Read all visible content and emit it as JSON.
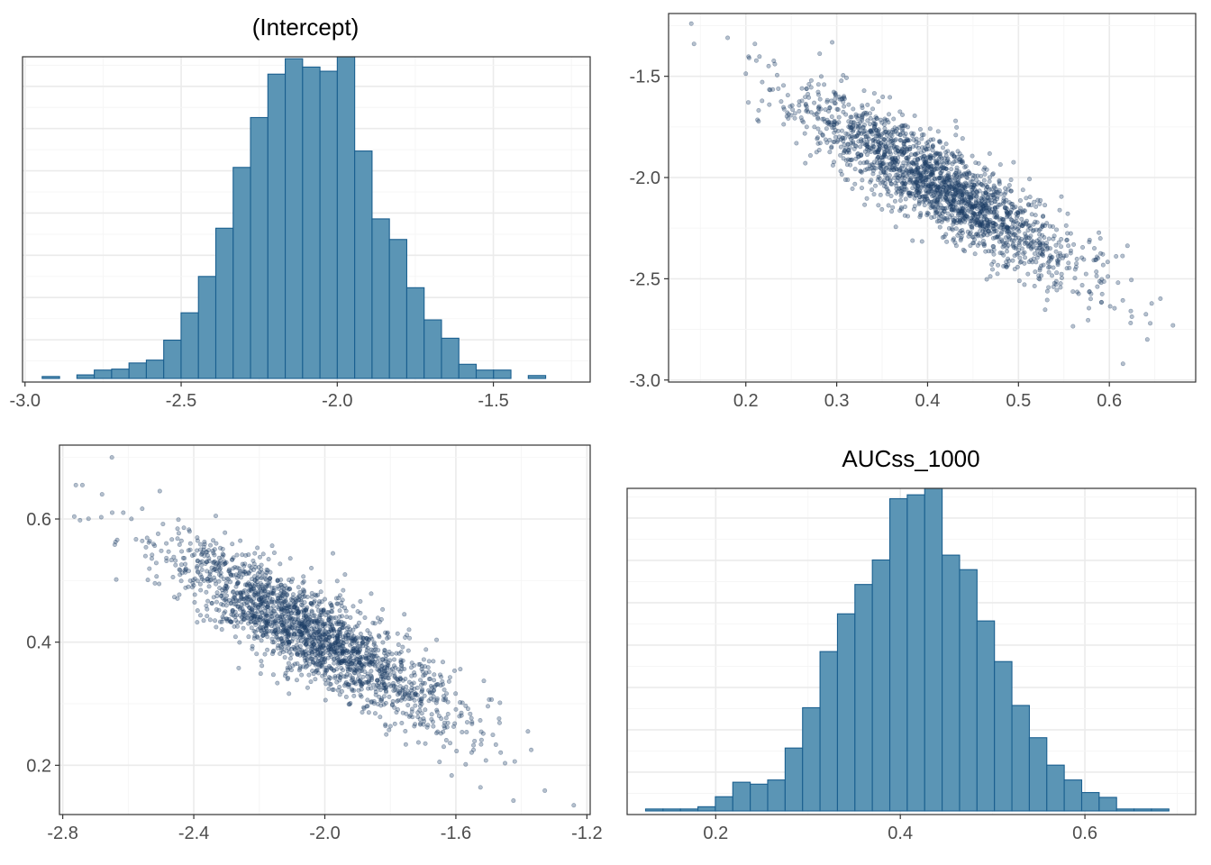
{
  "colors": {
    "hist_fill": "#5b95b5",
    "hist_stroke": "#1a5f8f",
    "point": "#1f3f66",
    "panel_border": "#333333",
    "grid": "#ebebeb"
  },
  "chart_data": [
    {
      "id": "hist-intercept",
      "type": "bar",
      "title": "(Intercept)",
      "xlabel": "",
      "ylabel": "",
      "xlim": [
        -3.008,
        -1.19
      ],
      "ylim": [
        0,
        1
      ],
      "x_ticks": [
        -3.0,
        -2.5,
        -2.0,
        -1.5
      ],
      "x_tick_labels": [
        "-3.0",
        "-2.5",
        "-2.0",
        "-1.5"
      ],
      "y_tick_labels_shown": false,
      "grid": true,
      "bin_start": -2.945,
      "bin_width": 0.0556,
      "values": [
        0.006,
        0.0,
        0.011,
        0.026,
        0.029,
        0.048,
        0.057,
        0.119,
        0.204,
        0.317,
        0.467,
        0.656,
        0.811,
        0.946,
        0.994,
        0.968,
        0.955,
        1.0,
        0.707,
        0.496,
        0.432,
        0.282,
        0.182,
        0.125,
        0.044,
        0.026,
        0.026,
        0.0,
        0.009
      ]
    },
    {
      "id": "scatter-auc-vs-intercept",
      "type": "scatter",
      "title": "",
      "xlabel": "",
      "ylabel": "",
      "xlim": [
        0.115,
        0.695
      ],
      "ylim": [
        -3.01,
        -1.19
      ],
      "x_ticks": [
        0.2,
        0.3,
        0.4,
        0.5,
        0.6
      ],
      "x_tick_labels": [
        "0.2",
        "0.3",
        "0.4",
        "0.5",
        "0.6"
      ],
      "y_ticks": [
        -3.0,
        -2.5,
        -2.0,
        -1.5
      ],
      "y_tick_labels": [
        "-3.0",
        "-2.5",
        "-2.0",
        "-1.5"
      ],
      "grid": true,
      "n_points": 2000,
      "x_mean": 0.415,
      "x_sd": 0.075,
      "y_mean": -2.045,
      "y_sd": 0.22,
      "correlation": -0.87,
      "seed": 11,
      "extra_points": [
        [
          0.14,
          -1.24
        ],
        [
          0.143,
          -1.34
        ],
        [
          0.18,
          -1.31
        ],
        [
          0.645,
          -2.72
        ],
        [
          0.67,
          -2.73
        ],
        [
          0.615,
          -2.92
        ],
        [
          0.21,
          -1.34
        ]
      ]
    },
    {
      "id": "scatter-intercept-vs-auc",
      "type": "scatter",
      "title": "",
      "xlabel": "",
      "ylabel": "",
      "xlim": [
        -2.81,
        -1.19
      ],
      "ylim": [
        0.12,
        0.72
      ],
      "x_ticks": [
        -2.8,
        -2.4,
        -2.0,
        -1.6,
        -1.2
      ],
      "x_tick_labels": [
        "-2.8",
        "-2.4",
        "-2.0",
        "-1.6",
        "-1.2"
      ],
      "y_ticks": [
        0.2,
        0.4,
        0.6
      ],
      "y_tick_labels": [
        "0.2",
        "0.4",
        "0.6"
      ],
      "grid": true,
      "n_points": 2000,
      "x_mean": -2.045,
      "x_sd": 0.22,
      "y_mean": 0.415,
      "y_sd": 0.075,
      "correlation": -0.87,
      "seed": 29,
      "extra_points": [
        [
          -2.76,
          0.655
        ],
        [
          -2.74,
          0.655
        ],
        [
          -2.65,
          0.7
        ],
        [
          -1.24,
          0.135
        ],
        [
          -1.37,
          0.225
        ],
        [
          -1.38,
          0.255
        ],
        [
          -2.68,
          0.64
        ]
      ]
    },
    {
      "id": "hist-aucss-1000",
      "type": "bar",
      "title": "AUCss_1000",
      "xlabel": "",
      "ylabel": "",
      "xlim": [
        0.104,
        0.72
      ],
      "ylim": [
        0,
        1
      ],
      "x_ticks": [
        0.2,
        0.4,
        0.6
      ],
      "x_tick_labels": [
        "0.2",
        "0.4",
        "0.6"
      ],
      "y_tick_labels_shown": false,
      "grid": true,
      "bin_start": 0.124,
      "bin_width": 0.0189,
      "values": [
        0.006,
        0.006,
        0.006,
        0.013,
        0.044,
        0.089,
        0.083,
        0.096,
        0.195,
        0.32,
        0.494,
        0.611,
        0.702,
        0.778,
        0.968,
        0.98,
        1.0,
        0.793,
        0.748,
        0.589,
        0.463,
        0.327,
        0.227,
        0.142,
        0.096,
        0.057,
        0.042,
        0.006,
        0.006,
        0.006
      ]
    }
  ]
}
